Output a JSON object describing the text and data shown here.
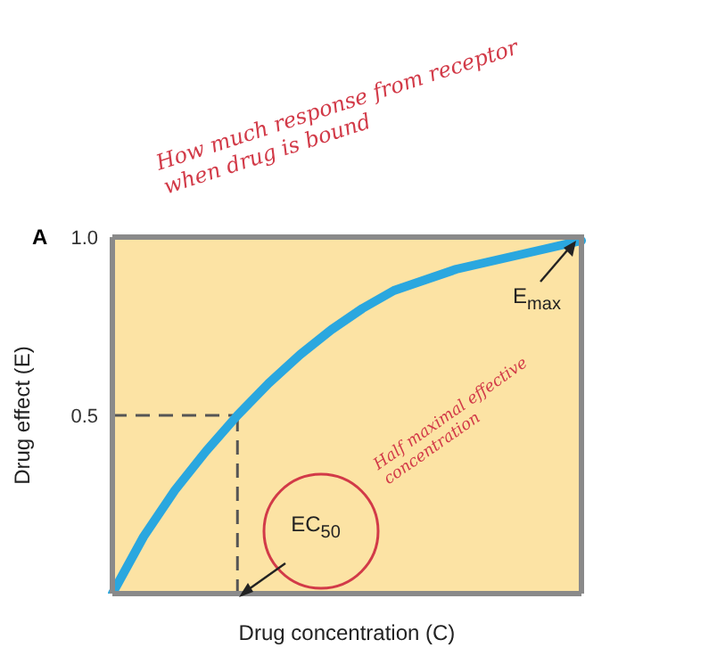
{
  "chart_data": {
    "type": "line",
    "title": "A",
    "xlabel": "Drug concentration (C)",
    "ylabel": "Drug effect (E)",
    "categories": [
      null,
      null,
      null,
      null,
      null,
      null,
      null,
      null,
      null,
      null,
      null,
      null,
      null,
      null,
      null,
      null
    ],
    "series": [
      {
        "color": "#2aa7df",
        "values": [
          0,
          0.16,
          0.29,
          0.4,
          0.5,
          0.59,
          0.67,
          0.74,
          0.8,
          0.85,
          0.88,
          0.91,
          0.93,
          0.95,
          0.97,
          0.99
        ]
      }
    ],
    "ylim": [
      0,
      1
    ],
    "yticks": [
      {
        "value": 0.5,
        "label": "0.5"
      },
      {
        "value": 1,
        "label": "1.0"
      }
    ],
    "annotations": [
      "E$_{max}$",
      "EC$_{50}$",
      "How much response from receptor when drug is bound",
      "Half maximal effective concentration"
    ],
    "ref_lines": [
      {
        "axis": "y",
        "value": 0.5,
        "line_style": "dashed",
        "color": "#555555"
      }
    ],
    "tick_labels": "y",
    "marker": "none",
    "line_style": "solid",
    "grid": false,
    "legend": false
  }
}
